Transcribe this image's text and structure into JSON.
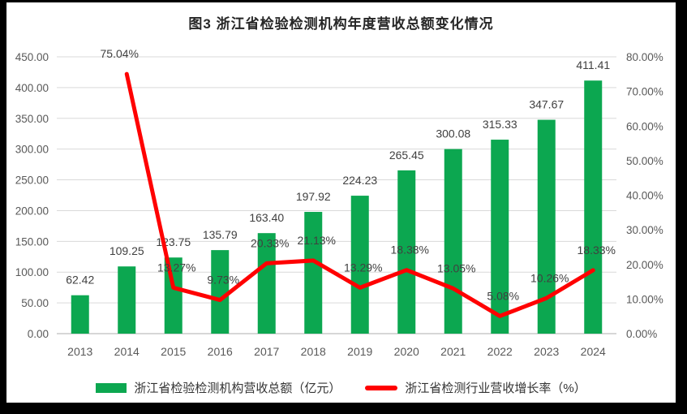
{
  "title": "图3   浙江省检验检测机构年度营收总额变化情况",
  "chart_data": {
    "type": "combo-bar-line",
    "title": "图3   浙江省检验检测机构年度营收总额变化情况",
    "categories": [
      "2013",
      "2014",
      "2015",
      "2016",
      "2017",
      "2018",
      "2019",
      "2020",
      "2021",
      "2022",
      "2023",
      "2024"
    ],
    "series": [
      {
        "name": "浙江省检验检测机构营收总额（亿元）",
        "type": "bar",
        "axis": "left",
        "color": "#0ca750",
        "values": [
          62.42,
          109.25,
          123.75,
          135.79,
          163.4,
          197.92,
          224.23,
          265.45,
          300.08,
          315.33,
          347.67,
          411.41
        ]
      },
      {
        "name": "浙江省检测行业营收增长率（%）",
        "type": "line",
        "axis": "right",
        "color": "#ff0000",
        "values": [
          null,
          75.04,
          13.27,
          9.73,
          20.33,
          21.13,
          13.29,
          18.38,
          13.05,
          5.08,
          10.26,
          18.33
        ]
      }
    ],
    "left_axis": {
      "min": 0,
      "max": 450,
      "step": 50,
      "tick_labels": [
        "0.00",
        "50.00",
        "100.00",
        "150.00",
        "200.00",
        "250.00",
        "300.00",
        "350.00",
        "400.00",
        "450.00"
      ]
    },
    "right_axis": {
      "min": 0,
      "max": 80,
      "step": 10,
      "tick_labels": [
        "0.00%",
        "10.00%",
        "20.00%",
        "30.00%",
        "40.00%",
        "50.00%",
        "60.00%",
        "70.00%",
        "80.00%"
      ]
    },
    "xlabel": "",
    "ylabel": "",
    "grid": true,
    "legend_position": "bottom",
    "colors": {
      "grid_line": "#d9d9d9",
      "axis_line": "#bfbfbf",
      "tick_text": "#595959",
      "data_label_text": "#404040",
      "frame": "#000000",
      "plot_background": "#ffffff"
    }
  }
}
